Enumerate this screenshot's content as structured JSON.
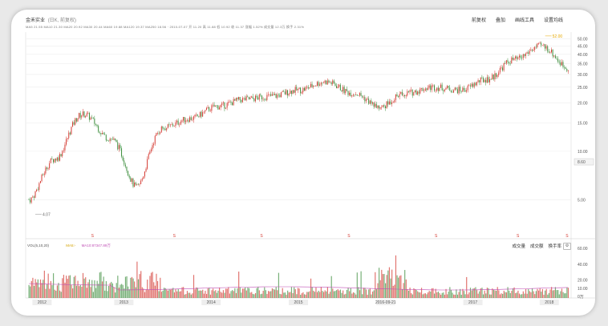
{
  "title": "金禾实业",
  "subtitle": "(日K, 前复权)",
  "toolbar": {
    "item1": "前复权",
    "item2": "叠加",
    "item3": "画线工具",
    "item4": "设置均线"
  },
  "ticker_text": "MA5 21.55 MA10 21.30 MA20 20.92 MA30 20.44 MA60 19.88 MA120 19.37 MA250 18.56 · 2010-07-07 开 11.20 高 11.88 低 10.92 收 11.37 涨幅 1.52% 成交量 12.3万 换手 2.31%",
  "price_axis": {
    "ticks": [
      "50.00",
      "45.00",
      "40.00",
      "35.00",
      "30.00",
      "25.00",
      "20.00",
      "15.00",
      "10.00",
      "5.00"
    ],
    "current": "8.60"
  },
  "annotations": {
    "high_label": "52.00",
    "low_label": "4.07"
  },
  "markers": [
    "S",
    "S",
    "S",
    "S",
    "S",
    "S",
    "S"
  ],
  "volume": {
    "legend": "VOL(5,10,20)",
    "ma_label": "MA5:-",
    "ma2_label": "MA10:87347.89万",
    "ticks": [
      "60.00",
      "40.00",
      "20.00",
      "10.00",
      "0万"
    ],
    "toolbar": [
      "成交量",
      "成交额",
      "换手率"
    ]
  },
  "x_labels": [
    "2012",
    "2013",
    "2014",
    "2015",
    "2016-09-21",
    "2017",
    "2018"
  ],
  "colors": {
    "up": "#d43b33",
    "down": "#3f8f3f",
    "grid": "#eeeeee",
    "accent": "#e5a800"
  },
  "chart_data": {
    "type": "candlestick",
    "series": [
      {
        "name": "price",
        "x": [
          0,
          5,
          10,
          15,
          20,
          25,
          30,
          35,
          40,
          45,
          50,
          55,
          60,
          65,
          70,
          75,
          80,
          85,
          90,
          95,
          100
        ],
        "values": [
          5,
          9,
          17,
          12,
          6,
          14,
          16,
          19,
          21,
          22,
          24,
          27,
          23,
          19,
          23,
          25,
          24,
          28,
          37,
          45,
          33
        ]
      }
    ],
    "ylim": [
      3,
      55
    ],
    "log_scale": true
  }
}
